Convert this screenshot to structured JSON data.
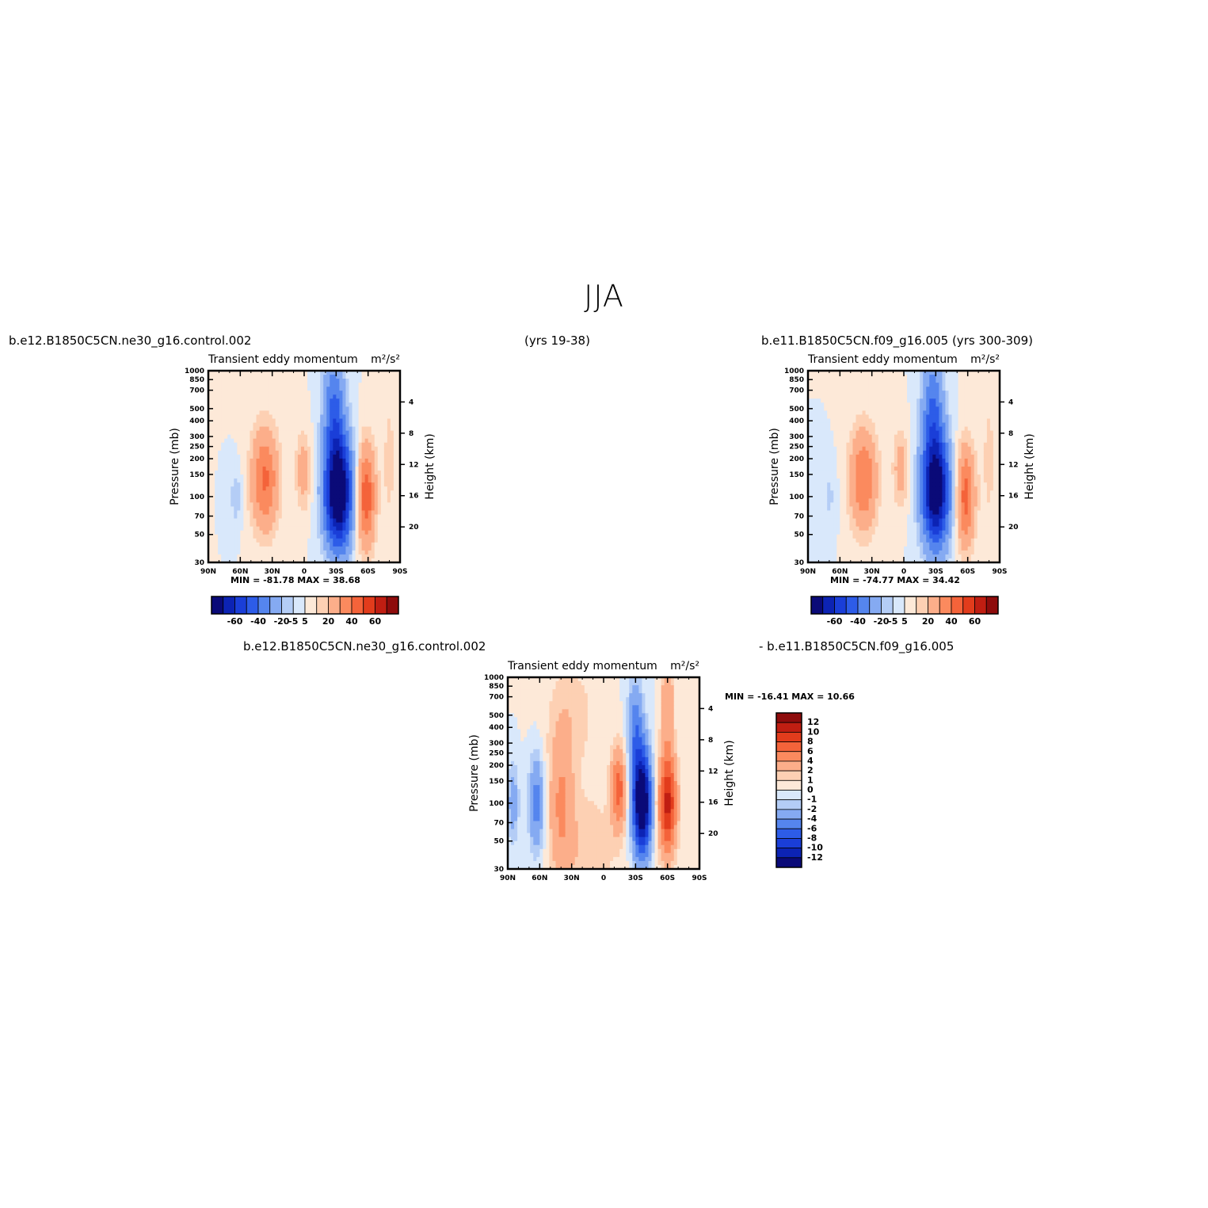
{
  "figure": {
    "title": "JJA",
    "left_case": "b.e12.B1850C5CN.ne30_g16.control.002",
    "left_years": "(yrs 19-38)",
    "right_case": "b.e11.B1850C5CN.f09_g16.005 (yrs 300-309)",
    "diff_case_a": "b.e12.B1850C5CN.ne30_g16.control.002",
    "diff_case_b": "- b.e11.B1850C5CN.f09_g16.005"
  },
  "colors": {
    "blue": [
      "#0a0a78",
      "#0c23b4",
      "#1a3ed8",
      "#2d5ce8",
      "#5585ee",
      "#85aaf2",
      "#b4cdf6",
      "#d9e8fb"
    ],
    "red": [
      "#fde9d8",
      "#fdd0b3",
      "#fcae8a",
      "#fb8a5e",
      "#f4633a",
      "#e23c1c",
      "#c01e12",
      "#8e0c0c"
    ]
  },
  "chart_data": [
    {
      "type": "heatmap",
      "panel": "left",
      "title_left": "Transient eddy momentum",
      "title_right": "m²/s²",
      "ylabel": "Pressure (mb)",
      "ylabel_right": "Height (km)",
      "x_ticks": [
        "90N",
        "60N",
        "30N",
        "0",
        "30S",
        "60S",
        "90S"
      ],
      "y_ticks": [
        "30",
        "50",
        "70",
        "100",
        "150",
        "200",
        "250",
        "300",
        "400",
        "500",
        "700",
        "850",
        "1000"
      ],
      "y_right_ticks": [
        "20",
        "16",
        "12",
        "8",
        "4"
      ],
      "stats": "MIN = -81.78   MAX =  38.68",
      "colorbar_labels": [
        "-60",
        "-40",
        "-20",
        "-5",
        "5",
        "20",
        "40",
        "60"
      ],
      "levels": [
        -70,
        -60,
        -50,
        -40,
        -30,
        -20,
        -10,
        -5,
        0,
        5,
        10,
        20,
        30,
        40,
        50,
        60,
        70
      ],
      "features": [
        {
          "lat": -32,
          "p": 280,
          "amp": -81.78,
          "sx": 9,
          "sy": 14
        },
        {
          "lat": -28,
          "p": 60,
          "amp": -30,
          "sx": 7,
          "sy": 14
        },
        {
          "lat": -58,
          "p": 300,
          "amp": 38.68,
          "sx": 6,
          "sy": 13
        },
        {
          "lat": 37,
          "p": 220,
          "amp": 32,
          "sx": 9,
          "sy": 13
        },
        {
          "lat": 1,
          "p": 190,
          "amp": 15,
          "sx": 5,
          "sy": 10
        },
        {
          "lat": 64,
          "p": 300,
          "amp": -9,
          "sx": 4,
          "sy": 7
        },
        {
          "lat": -80,
          "p": 150,
          "amp": 6,
          "sx": 6,
          "sy": 25
        }
      ]
    },
    {
      "type": "heatmap",
      "panel": "right",
      "title_left": "Transient eddy momentum",
      "title_right": "m²/s²",
      "ylabel": "Pressure (mb)",
      "ylabel_right": "Height (km)",
      "x_ticks": [
        "90N",
        "60N",
        "30N",
        "0",
        "30S",
        "60S",
        "90S"
      ],
      "y_ticks": [
        "30",
        "50",
        "70",
        "100",
        "150",
        "200",
        "250",
        "300",
        "400",
        "500",
        "700",
        "850",
        "1000"
      ],
      "y_right_ticks": [
        "20",
        "16",
        "12",
        "8",
        "4"
      ],
      "stats": "MIN = -74.77   MAX =  34.42",
      "colorbar_labels": [
        "-60",
        "-40",
        "-20",
        "-5",
        "5",
        "20",
        "40",
        "60"
      ],
      "levels": [
        -70,
        -60,
        -50,
        -40,
        -30,
        -20,
        -10,
        -5,
        0,
        5,
        10,
        20,
        30,
        40,
        50,
        60,
        70
      ],
      "features": [
        {
          "lat": -30,
          "p": 270,
          "amp": -74.77,
          "sx": 9,
          "sy": 14
        },
        {
          "lat": -27,
          "p": 60,
          "amp": -28,
          "sx": 7,
          "sy": 14
        },
        {
          "lat": -58,
          "p": 300,
          "amp": 34.42,
          "sx": 6,
          "sy": 13
        },
        {
          "lat": 38,
          "p": 220,
          "amp": 30,
          "sx": 9,
          "sy": 13
        },
        {
          "lat": 3,
          "p": 180,
          "amp": 15,
          "sx": 5,
          "sy": 10
        },
        {
          "lat": 70,
          "p": 300,
          "amp": -6,
          "sx": 5,
          "sy": 8
        },
        {
          "lat": -80,
          "p": 150,
          "amp": 6,
          "sx": 6,
          "sy": 25
        }
      ]
    },
    {
      "type": "heatmap",
      "panel": "difference",
      "title_left": "Transient eddy momentum",
      "title_right": "m²/s²",
      "ylabel": "Pressure (mb)",
      "ylabel_right": "Height (km)",
      "x_ticks": [
        "90N",
        "60N",
        "30N",
        "0",
        "30S",
        "60S",
        "90S"
      ],
      "y_ticks": [
        "30",
        "50",
        "70",
        "100",
        "150",
        "200",
        "250",
        "300",
        "400",
        "500",
        "700",
        "850",
        "1000"
      ],
      "y_right_ticks": [
        "20",
        "16",
        "12",
        "8",
        "4"
      ],
      "stats": "MIN = -16.41   MAX =  10.66",
      "colorbar_labels": [
        "12",
        "10",
        "8",
        "6",
        "4",
        "2",
        "1",
        "0",
        "-1",
        "-2",
        "-4",
        "-6",
        "-8",
        "-10",
        "-12"
      ],
      "levels": [
        -14,
        -12,
        -10,
        -8,
        -6,
        -4,
        -2,
        -1,
        0,
        1,
        2,
        4,
        6,
        8,
        10,
        12,
        14
      ],
      "features": [
        {
          "lat": -36,
          "p": 300,
          "amp": -16.41,
          "sx": 6,
          "sy": 13
        },
        {
          "lat": -30,
          "p": 80,
          "amp": -5,
          "sx": 5,
          "sy": 13
        },
        {
          "lat": -60,
          "p": 300,
          "amp": 10.66,
          "sx": 6,
          "sy": 13
        },
        {
          "lat": -60,
          "p": 45,
          "amp": 4,
          "sx": 4,
          "sy": 12
        },
        {
          "lat": -14,
          "p": 230,
          "amp": 7,
          "sx": 5,
          "sy": 10
        },
        {
          "lat": 40,
          "p": 300,
          "amp": 4,
          "sx": 8,
          "sy": 18
        },
        {
          "lat": 63,
          "p": 300,
          "amp": -5,
          "sx": 5,
          "sy": 12
        },
        {
          "lat": 85,
          "p": 300,
          "amp": -3,
          "sx": 4,
          "sy": 10
        },
        {
          "lat": 15,
          "p": 700,
          "amp": 1.8,
          "sx": 20,
          "sy": 15
        },
        {
          "lat": 30,
          "p": 60,
          "amp": 1.5,
          "sx": 18,
          "sy": 15
        }
      ]
    }
  ]
}
